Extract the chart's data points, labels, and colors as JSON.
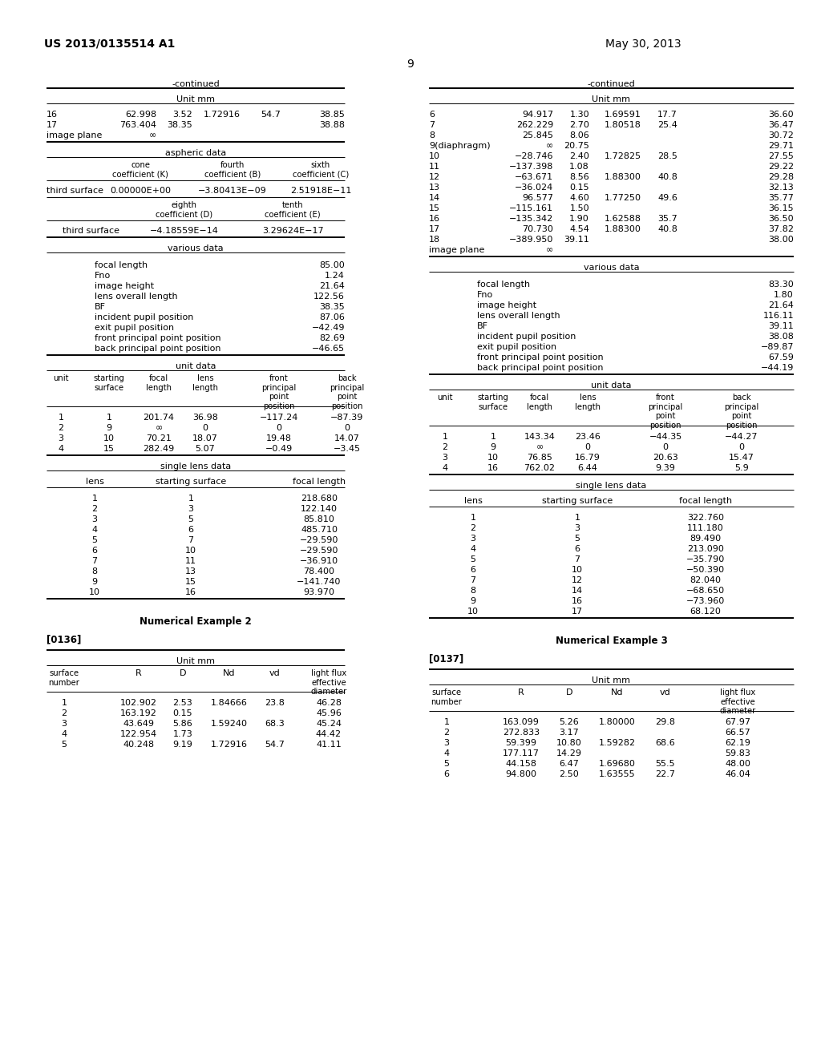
{
  "page_color": "#ffffff",
  "header_left": "US 2013/0135514 A1",
  "header_right": "May 30, 2013",
  "page_number": "9",
  "left_col": {
    "continued_label": "-continued",
    "surface_rows": [
      {
        "num": "16",
        "R": "62.998",
        "D": "3.52",
        "Nd": "1.72916",
        "vd": "54.7",
        "lf": "38.85"
      },
      {
        "num": "17",
        "R": "763.404",
        "D": "38.35",
        "Nd": "",
        "vd": "",
        "lf": "38.88"
      },
      {
        "num": "image plane",
        "R": "∞",
        "D": "",
        "Nd": "",
        "vd": "",
        "lf": ""
      }
    ],
    "aspheric_row1": [
      "third surface",
      "0.00000E+00",
      "−3.80413E−09",
      "2.51918E−11"
    ],
    "aspheric_row2": [
      "third surface",
      "−4.18559E−14",
      "3.29624E−17"
    ],
    "various_data": [
      [
        "focal length",
        "85.00"
      ],
      [
        "Fno",
        "1.24"
      ],
      [
        "image height",
        "21.64"
      ],
      [
        "lens overall length",
        "122.56"
      ],
      [
        "BF",
        "38.35"
      ],
      [
        "incident pupil position",
        "87.06"
      ],
      [
        "exit pupil position",
        "−42.49"
      ],
      [
        "front principal point position",
        "82.69"
      ],
      [
        "back principal point position",
        "−46.65"
      ]
    ],
    "unit_rows": [
      [
        "1",
        "1",
        "201.74",
        "36.98",
        "−117.24",
        "−87.39"
      ],
      [
        "2",
        "9",
        "∞",
        "0",
        "0",
        "0"
      ],
      [
        "3",
        "10",
        "70.21",
        "18.07",
        "19.48",
        "14.07"
      ],
      [
        "4",
        "15",
        "282.49",
        "5.07",
        "−0.49",
        "−3.45"
      ]
    ],
    "single_rows": [
      [
        "1",
        "1",
        "218.680"
      ],
      [
        "2",
        "3",
        "122.140"
      ],
      [
        "3",
        "5",
        "85.810"
      ],
      [
        "4",
        "6",
        "485.710"
      ],
      [
        "5",
        "7",
        "−29.590"
      ],
      [
        "6",
        "10",
        "−29.590"
      ],
      [
        "7",
        "11",
        "−36.910"
      ],
      [
        "8",
        "13",
        "78.400"
      ],
      [
        "9",
        "15",
        "−141.740"
      ],
      [
        "10",
        "16",
        "93.970"
      ]
    ],
    "example_label": "Numerical Example 2",
    "ref_label": "[0136]",
    "bottom_rows": [
      [
        "1",
        "102.902",
        "2.53",
        "1.84666",
        "23.8",
        "46.28"
      ],
      [
        "2",
        "163.192",
        "0.15",
        "",
        "",
        "45.96"
      ],
      [
        "3",
        "43.649",
        "5.86",
        "1.59240",
        "68.3",
        "45.24"
      ],
      [
        "4",
        "122.954",
        "1.73",
        "",
        "",
        "44.42"
      ],
      [
        "5",
        "40.248",
        "9.19",
        "1.72916",
        "54.7",
        "41.11"
      ]
    ]
  },
  "right_col": {
    "continued_label": "-continued",
    "surface_rows": [
      {
        "num": "6",
        "R": "94.917",
        "D": "1.30",
        "Nd": "1.69591",
        "vd": "17.7",
        "lf": "36.60"
      },
      {
        "num": "7",
        "R": "262.229",
        "D": "2.70",
        "Nd": "1.80518",
        "vd": "25.4",
        "lf": "36.47"
      },
      {
        "num": "8",
        "R": "25.845",
        "D": "8.06",
        "Nd": "",
        "vd": "",
        "lf": "30.72"
      },
      {
        "num": "9(diaphragm)",
        "R": "∞",
        "D": "20.75",
        "Nd": "",
        "vd": "",
        "lf": "29.71"
      },
      {
        "num": "10",
        "R": "−28.746",
        "D": "2.40",
        "Nd": "1.72825",
        "vd": "28.5",
        "lf": "27.55"
      },
      {
        "num": "11",
        "R": "−137.398",
        "D": "1.08",
        "Nd": "",
        "vd": "",
        "lf": "29.22"
      },
      {
        "num": "12",
        "R": "−63.671",
        "D": "8.56",
        "Nd": "1.88300",
        "vd": "40.8",
        "lf": "29.28"
      },
      {
        "num": "13",
        "R": "−36.024",
        "D": "0.15",
        "Nd": "",
        "vd": "",
        "lf": "32.13"
      },
      {
        "num": "14",
        "R": "96.577",
        "D": "4.60",
        "Nd": "1.77250",
        "vd": "49.6",
        "lf": "35.77"
      },
      {
        "num": "15",
        "R": "−115.161",
        "D": "1.50",
        "Nd": "",
        "vd": "",
        "lf": "36.15"
      },
      {
        "num": "16",
        "R": "−135.342",
        "D": "1.90",
        "Nd": "1.62588",
        "vd": "35.7",
        "lf": "36.50"
      },
      {
        "num": "17",
        "R": "70.730",
        "D": "4.54",
        "Nd": "1.88300",
        "vd": "40.8",
        "lf": "37.82"
      },
      {
        "num": "18",
        "R": "−389.950",
        "D": "39.11",
        "Nd": "",
        "vd": "",
        "lf": "38.00"
      },
      {
        "num": "image plane",
        "R": "∞",
        "D": "",
        "Nd": "",
        "vd": "",
        "lf": ""
      }
    ],
    "various_data": [
      [
        "focal length",
        "83.30"
      ],
      [
        "Fno",
        "1.80"
      ],
      [
        "image height",
        "21.64"
      ],
      [
        "lens overall length",
        "116.11"
      ],
      [
        "BF",
        "39.11"
      ],
      [
        "incident pupil position",
        "38.08"
      ],
      [
        "exit pupil position",
        "−89.87"
      ],
      [
        "front principal point position",
        "67.59"
      ],
      [
        "back principal point position",
        "−44.19"
      ]
    ],
    "unit_rows": [
      [
        "1",
        "1",
        "143.34",
        "23.46",
        "−44.35",
        "−44.27"
      ],
      [
        "2",
        "9",
        "∞",
        "0",
        "0",
        "0"
      ],
      [
        "3",
        "10",
        "76.85",
        "16.79",
        "20.63",
        "15.47"
      ],
      [
        "4",
        "16",
        "762.02",
        "6.44",
        "9.39",
        "5.9"
      ]
    ],
    "single_rows": [
      [
        "1",
        "1",
        "322.760"
      ],
      [
        "2",
        "3",
        "111.180"
      ],
      [
        "3",
        "5",
        "89.490"
      ],
      [
        "4",
        "6",
        "213.090"
      ],
      [
        "5",
        "7",
        "−35.790"
      ],
      [
        "6",
        "10",
        "−50.390"
      ],
      [
        "7",
        "12",
        "82.040"
      ],
      [
        "8",
        "14",
        "−68.650"
      ],
      [
        "9",
        "16",
        "−73.960"
      ],
      [
        "10",
        "17",
        "68.120"
      ]
    ],
    "example_label": "Numerical Example 3",
    "ref_label": "[0137]",
    "bottom_rows": [
      [
        "1",
        "163.099",
        "5.26",
        "1.80000",
        "29.8",
        "67.97"
      ],
      [
        "2",
        "272.833",
        "3.17",
        "",
        "",
        "66.57"
      ],
      [
        "3",
        "59.399",
        "10.80",
        "1.59282",
        "68.6",
        "62.19"
      ],
      [
        "4",
        "177.117",
        "14.29",
        "",
        "",
        "59.83"
      ],
      [
        "5",
        "44.158",
        "6.47",
        "1.69680",
        "55.5",
        "48.00"
      ],
      [
        "6",
        "94.800",
        "2.50",
        "1.63555",
        "22.7",
        "46.04"
      ]
    ]
  }
}
